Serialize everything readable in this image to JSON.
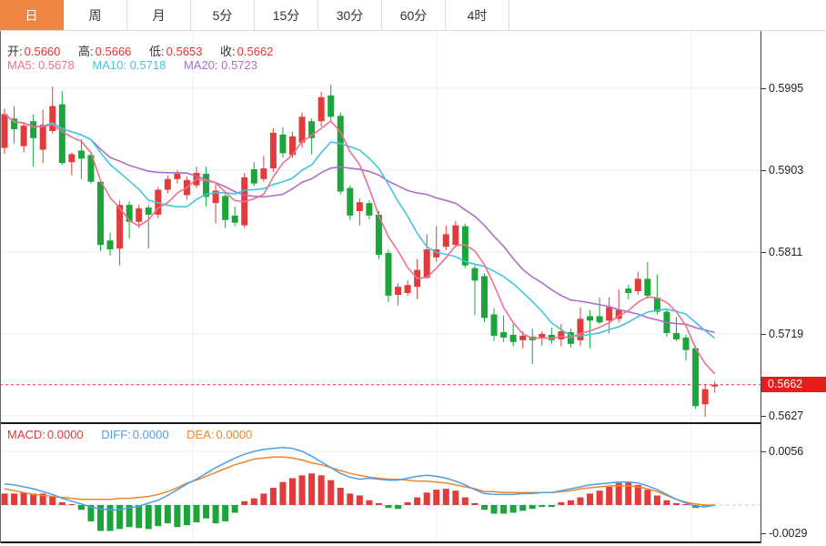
{
  "tabs": {
    "items": [
      {
        "label": "日",
        "active": true
      },
      {
        "label": "周"
      },
      {
        "label": "月"
      },
      {
        "label": "5分"
      },
      {
        "label": "15分"
      },
      {
        "label": "30分"
      },
      {
        "label": "60分"
      },
      {
        "label": "4时"
      }
    ]
  },
  "main_chart": {
    "legend_ohlc": [
      {
        "label": "开:",
        "value": "0.5660"
      },
      {
        "label": "高:",
        "value": "0.5666"
      },
      {
        "label": "低:",
        "value": "0.5653"
      },
      {
        "label": "收:",
        "value": "0.5662"
      }
    ],
    "legend_ma": [
      {
        "label": "MA5:",
        "value": "0.5678"
      },
      {
        "label": "MA10:",
        "value": "0.5718"
      },
      {
        "label": "MA20:",
        "value": "0.5723"
      }
    ],
    "axis_ticks": [
      {
        "label": "0.5995",
        "price": 0.5995
      },
      {
        "label": "0.5903",
        "price": 0.5903
      },
      {
        "label": "0.5811",
        "price": 0.5811
      },
      {
        "label": "0.5719",
        "price": 0.5719
      },
      {
        "label": "0.5627",
        "price": 0.5627
      }
    ],
    "last_price_badge": {
      "label": "0.5662",
      "price": 0.5662
    }
  },
  "macd_panel": {
    "legend": [
      {
        "label": "MACD:",
        "value": "0.0000"
      },
      {
        "label": "DIFF:",
        "value": "0.0000"
      },
      {
        "label": "DEA:",
        "value": "0.0000"
      }
    ],
    "axis_ticks": [
      {
        "label": "0.0056",
        "value": 0.0056
      },
      {
        "label": "-0.0029",
        "value": -0.0029
      }
    ]
  },
  "colors": {
    "up": "#E23B3B",
    "down": "#1CA53A",
    "ma5": "#F0718F",
    "ma10": "#45C5DC",
    "ma20": "#B06CC8",
    "diff": "#4C9FE6",
    "dea": "#F2862C",
    "grid": "#E7EEF4",
    "zero_line": "#A5D8F2",
    "last_price_line": "#F03030",
    "badge": "#E81C1C",
    "active_tab": "#EF8742"
  },
  "chart_data": [
    {
      "type": "candlestick",
      "panel": "main",
      "title": "",
      "price_ticks": [
        0.5995,
        0.5903,
        0.5811,
        0.5719,
        0.5627
      ],
      "ylim": [
        0.5615,
        0.6059
      ],
      "last_price": 0.5662,
      "open": 0.566,
      "high": 0.5666,
      "low": 0.5653,
      "close": 0.5662,
      "ma_periods": [
        5,
        10,
        20
      ],
      "ma_last": {
        "ma5": 0.5678,
        "ma10": 0.5718,
        "ma20": 0.5723
      },
      "candles": [
        [
          0.5928,
          0.5972,
          0.5921,
          0.5966
        ],
        [
          0.5961,
          0.5975,
          0.5933,
          0.5949
        ],
        [
          0.593,
          0.5956,
          0.5923,
          0.5953
        ],
        [
          0.5958,
          0.5966,
          0.5907,
          0.5939
        ],
        [
          0.5926,
          0.5971,
          0.5911,
          0.5954
        ],
        [
          0.5947,
          0.5997,
          0.5944,
          0.5975
        ],
        [
          0.5977,
          0.5992,
          0.5909,
          0.5911
        ],
        [
          0.5912,
          0.5923,
          0.5897,
          0.5921
        ],
        [
          0.5925,
          0.5938,
          0.5893,
          0.5916
        ],
        [
          0.592,
          0.5921,
          0.5888,
          0.589
        ],
        [
          0.589,
          0.5892,
          0.5812,
          0.5819
        ],
        [
          0.5824,
          0.5833,
          0.5807,
          0.5814
        ],
        [
          0.5815,
          0.5869,
          0.5796,
          0.5864
        ],
        [
          0.5864,
          0.5868,
          0.5826,
          0.5845
        ],
        [
          0.5845,
          0.5864,
          0.5838,
          0.586
        ],
        [
          0.5861,
          0.5864,
          0.5815,
          0.5853
        ],
        [
          0.5853,
          0.5884,
          0.5849,
          0.5881
        ],
        [
          0.5881,
          0.5897,
          0.5877,
          0.5893
        ],
        [
          0.5893,
          0.5903,
          0.5888,
          0.5899
        ],
        [
          0.5875,
          0.5896,
          0.587,
          0.5892
        ],
        [
          0.5886,
          0.5907,
          0.5883,
          0.59
        ],
        [
          0.5899,
          0.5907,
          0.5862,
          0.5873
        ],
        [
          0.5866,
          0.5887,
          0.5843,
          0.588
        ],
        [
          0.5874,
          0.5878,
          0.5838,
          0.5847
        ],
        [
          0.5852,
          0.5862,
          0.584,
          0.5844
        ],
        [
          0.5841,
          0.59,
          0.5838,
          0.5895
        ],
        [
          0.5904,
          0.5912,
          0.5885,
          0.5888
        ],
        [
          0.5893,
          0.5919,
          0.589,
          0.5905
        ],
        [
          0.5905,
          0.595,
          0.5901,
          0.5945
        ],
        [
          0.5943,
          0.5951,
          0.5917,
          0.5922
        ],
        [
          0.592,
          0.5946,
          0.5917,
          0.5941
        ],
        [
          0.5934,
          0.5968,
          0.5928,
          0.5963
        ],
        [
          0.5958,
          0.5961,
          0.5921,
          0.5939
        ],
        [
          0.5958,
          0.5991,
          0.5952,
          0.5985
        ],
        [
          0.5987,
          0.5999,
          0.5959,
          0.5963
        ],
        [
          0.5964,
          0.5968,
          0.5876,
          0.5879
        ],
        [
          0.5883,
          0.5886,
          0.5847,
          0.5852
        ],
        [
          0.5857,
          0.5871,
          0.5841,
          0.5867
        ],
        [
          0.5866,
          0.5869,
          0.5848,
          0.5852
        ],
        [
          0.5853,
          0.5857,
          0.5803,
          0.5808
        ],
        [
          0.581,
          0.5814,
          0.5755,
          0.5762
        ],
        [
          0.5763,
          0.5776,
          0.5751,
          0.5772
        ],
        [
          0.5765,
          0.5779,
          0.5762,
          0.5774
        ],
        [
          0.5772,
          0.5803,
          0.5758,
          0.5791
        ],
        [
          0.5782,
          0.5831,
          0.5781,
          0.5814
        ],
        [
          0.5805,
          0.584,
          0.58,
          0.5814
        ],
        [
          0.5817,
          0.5841,
          0.5813,
          0.5831
        ],
        [
          0.5819,
          0.5846,
          0.5816,
          0.5841
        ],
        [
          0.584,
          0.5843,
          0.5793,
          0.5796
        ],
        [
          0.5793,
          0.5796,
          0.574,
          0.5779
        ],
        [
          0.5784,
          0.5787,
          0.5732,
          0.5737
        ],
        [
          0.5741,
          0.5748,
          0.5711,
          0.5717
        ],
        [
          0.5721,
          0.574,
          0.571,
          0.5715
        ],
        [
          0.5718,
          0.573,
          0.5705,
          0.571
        ],
        [
          0.5712,
          0.5722,
          0.5703,
          0.5717
        ],
        [
          0.5716,
          0.5725,
          0.5685,
          0.5712
        ],
        [
          0.5714,
          0.5722,
          0.5706,
          0.5719
        ],
        [
          0.5718,
          0.5726,
          0.5708,
          0.5712
        ],
        [
          0.5713,
          0.573,
          0.5705,
          0.5722
        ],
        [
          0.5721,
          0.5725,
          0.5704,
          0.5708
        ],
        [
          0.5712,
          0.5749,
          0.5706,
          0.5736
        ],
        [
          0.5739,
          0.5746,
          0.5703,
          0.5734
        ],
        [
          0.5739,
          0.576,
          0.573,
          0.5732
        ],
        [
          0.5734,
          0.576,
          0.572,
          0.5749
        ],
        [
          0.5736,
          0.5769,
          0.5732,
          0.5746
        ],
        [
          0.577,
          0.5774,
          0.5758,
          0.5765
        ],
        [
          0.5767,
          0.5789,
          0.5763,
          0.5781
        ],
        [
          0.5781,
          0.58,
          0.5759,
          0.5762
        ],
        [
          0.576,
          0.5786,
          0.5741,
          0.5744
        ],
        [
          0.5744,
          0.5747,
          0.5716,
          0.572
        ],
        [
          0.572,
          0.5738,
          0.5711,
          0.5713
        ],
        [
          0.5715,
          0.5718,
          0.5689,
          0.5701
        ],
        [
          0.5703,
          0.5706,
          0.5635,
          0.5638
        ],
        [
          0.564,
          0.5663,
          0.5626,
          0.5657
        ],
        [
          0.566,
          0.5666,
          0.5653,
          0.5662
        ]
      ]
    },
    {
      "type": "bar",
      "panel": "macd",
      "ticks": [
        0.0056,
        -0.0029
      ],
      "ylim": [
        -0.004,
        0.0084
      ],
      "values": [
        0.0012,
        0.0012,
        0.0013,
        0.0012,
        0.0012,
        0.0009,
        0.0003,
        0.0001,
        -0.0005,
        -0.0017,
        -0.0027,
        -0.0027,
        -0.0025,
        -0.0023,
        -0.0024,
        -0.0025,
        -0.0022,
        -0.0019,
        -0.0023,
        -0.0021,
        -0.0018,
        -0.0014,
        -0.0019,
        -0.0017,
        -0.0008,
        0.0004,
        0.0007,
        0.0012,
        0.0018,
        0.0024,
        0.0028,
        0.0031,
        0.0033,
        0.0031,
        0.0026,
        0.0018,
        0.0012,
        0.001,
        0.0005,
        0.0002,
        -0.0003,
        -0.0004,
        0.0003,
        0.0008,
        0.0013,
        0.0016,
        0.0017,
        0.0015,
        0.0008,
        0.0002,
        -0.0005,
        -0.0009,
        -0.0009,
        -0.0008,
        -0.0006,
        -0.0004,
        -0.0002,
        -0.0002,
        0.0003,
        0.0005,
        0.0008,
        0.0012,
        0.0015,
        0.0019,
        0.0023,
        0.0024,
        0.0021,
        0.0016,
        0.001,
        0.0005,
        0.0002,
        0.0001,
        -0.0003,
        -0.0001,
        0.0
      ],
      "series": [
        {
          "name": "DIFF",
          "values": [
            0.0022,
            0.0021,
            0.0019,
            0.0017,
            0.0014,
            0.0011,
            0.0007,
            0.0004,
            0.0001,
            -0.0002,
            -0.0004,
            -0.0005,
            -0.0005,
            -0.0003,
            -0.0001,
            0.0002,
            0.0005,
            0.001,
            0.0016,
            0.0022,
            0.0027,
            0.0033,
            0.0039,
            0.0044,
            0.0049,
            0.0053,
            0.0056,
            0.0058,
            0.0059,
            0.006,
            0.0059,
            0.0056,
            0.0051,
            0.0045,
            0.0039,
            0.0033,
            0.0029,
            0.0027,
            0.0028,
            0.0027,
            0.0026,
            0.0026,
            0.0028,
            0.003,
            0.0031,
            0.003,
            0.0028,
            0.0025,
            0.0021,
            0.0016,
            0.0012,
            0.0011,
            0.0011,
            0.0011,
            0.0012,
            0.0012,
            0.0013,
            0.0013,
            0.0015,
            0.0017,
            0.0019,
            0.0021,
            0.0022,
            0.0023,
            0.0024,
            0.0024,
            0.0023,
            0.002,
            0.0016,
            0.0011,
            0.0006,
            0.0002,
            -0.0001,
            -0.0002,
            0.0
          ]
        },
        {
          "name": "DEA",
          "values": [
            0.0017,
            0.0015,
            0.0013,
            0.0011,
            0.001,
            0.0009,
            0.0008,
            0.0007,
            0.0006,
            0.0006,
            0.0006,
            0.0006,
            0.0007,
            0.0007,
            0.0008,
            0.0009,
            0.0011,
            0.0014,
            0.0018,
            0.0023,
            0.0026,
            0.003,
            0.0034,
            0.0038,
            0.0042,
            0.0045,
            0.0048,
            0.0049,
            0.005,
            0.005,
            0.0049,
            0.0047,
            0.0044,
            0.0042,
            0.0039,
            0.0036,
            0.0033,
            0.0031,
            0.0029,
            0.0028,
            0.0027,
            0.0027,
            0.0026,
            0.0025,
            0.0025,
            0.0024,
            0.0023,
            0.0021,
            0.0019,
            0.0017,
            0.0014,
            0.0014,
            0.0013,
            0.0013,
            0.0013,
            0.0013,
            0.0013,
            0.0013,
            0.0014,
            0.0015,
            0.0017,
            0.0018,
            0.0019,
            0.002,
            0.002,
            0.002,
            0.0019,
            0.0017,
            0.0014,
            0.001,
            0.0006,
            0.0003,
            0.0001,
            0.0,
            0.0
          ]
        }
      ]
    }
  ]
}
